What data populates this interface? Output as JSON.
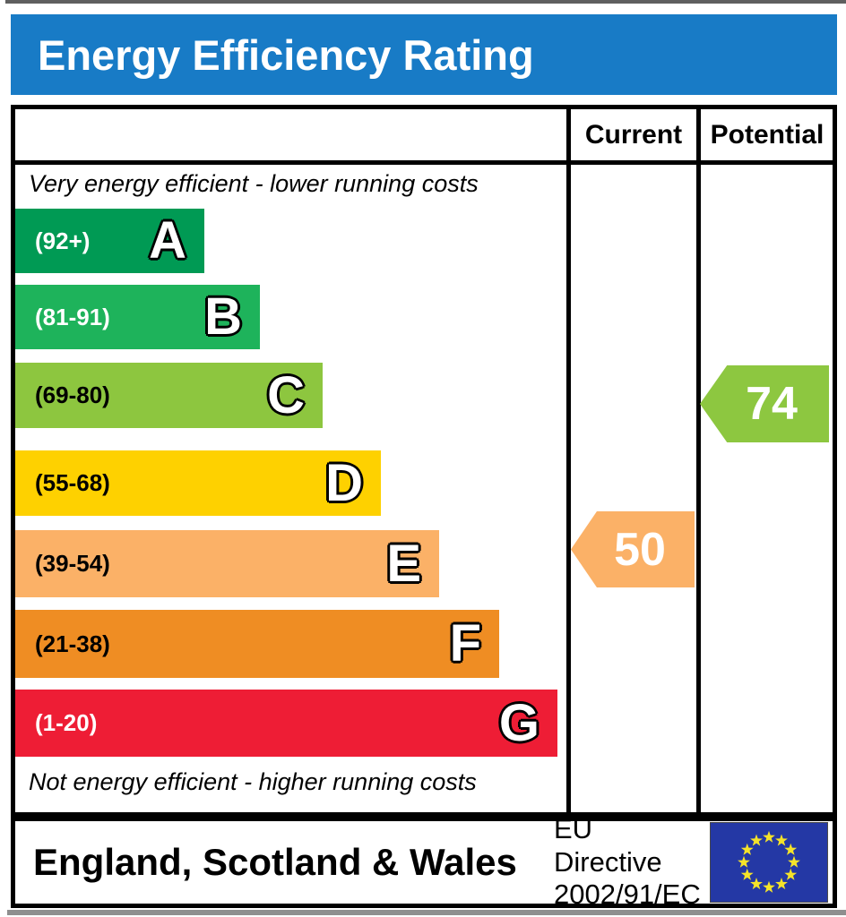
{
  "header": {
    "title": "Energy Efficiency Rating",
    "bg_color": "#187bc6",
    "text_color": "#ffffff"
  },
  "table": {
    "current_label": "Current",
    "potential_label": "Potential"
  },
  "captions": {
    "top": "Very energy efficient - lower running costs",
    "bottom": "Not energy efficient - higher running costs"
  },
  "chart_data": {
    "type": "bar",
    "title": "Energy Efficiency Rating",
    "categories": [
      "A",
      "B",
      "C",
      "D",
      "E",
      "F",
      "G"
    ],
    "bands": [
      {
        "grade": "A",
        "range_label": "(92+)",
        "min": 92,
        "max": 100,
        "color": "#009a54",
        "label_color": "#ffffff"
      },
      {
        "grade": "B",
        "range_label": "(81-91)",
        "min": 81,
        "max": 91,
        "color": "#1eb35b",
        "label_color": "#ffffff"
      },
      {
        "grade": "C",
        "range_label": "(69-80)",
        "min": 69,
        "max": 80,
        "color": "#8dc63f",
        "label_color": "#000000"
      },
      {
        "grade": "D",
        "range_label": "(55-68)",
        "min": 55,
        "max": 68,
        "color": "#fed100",
        "label_color": "#000000"
      },
      {
        "grade": "E",
        "range_label": "(39-54)",
        "min": 39,
        "max": 54,
        "color": "#fbb167",
        "label_color": "#000000"
      },
      {
        "grade": "F",
        "range_label": "(21-38)",
        "min": 21,
        "max": 38,
        "color": "#ef8d23",
        "label_color": "#000000"
      },
      {
        "grade": "G",
        "range_label": "(1-20)",
        "min": 1,
        "max": 20,
        "color": "#ee1d35",
        "label_color": "#ffffff"
      }
    ],
    "current": {
      "value": 50,
      "band": "E",
      "color": "#fbb167"
    },
    "potential": {
      "value": 74,
      "band": "C",
      "color": "#8dc740"
    }
  },
  "footer": {
    "region": "England, Scotland & Wales",
    "directive_line1": "EU Directive",
    "directive_line2": "2002/91/EC",
    "flag": {
      "name": "eu-flag",
      "bg_color": "#2438a5",
      "star_color": "#f5e32a"
    }
  }
}
